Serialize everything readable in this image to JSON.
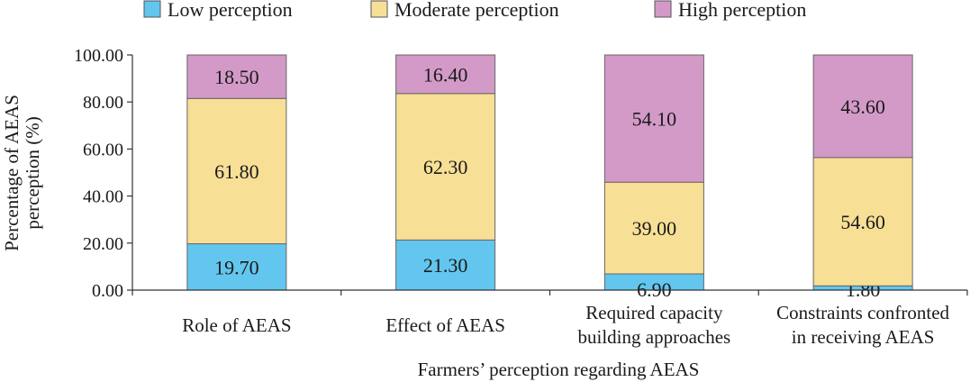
{
  "chart_data": {
    "type": "bar",
    "stacked": true,
    "categories": [
      [
        "Role of AEAS"
      ],
      [
        "Effect of AEAS"
      ],
      [
        "Required capacity",
        "building approaches"
      ],
      [
        "Constraints confronted",
        "in receiving AEAS"
      ]
    ],
    "series": [
      {
        "name": "Low perception",
        "color": "#63c6ee",
        "values": [
          19.7,
          21.3,
          6.9,
          1.8
        ]
      },
      {
        "name": "Moderate perception",
        "color": "#f8df96",
        "values": [
          61.8,
          62.3,
          39.0,
          54.6
        ]
      },
      {
        "name": "High perception",
        "color": "#d39ac8",
        "values": [
          18.5,
          16.4,
          54.1,
          43.6
        ]
      }
    ],
    "value_labels": [
      [
        "19.70",
        "21.30",
        "6.90",
        "1.80"
      ],
      [
        "61.80",
        "62.30",
        "39.00",
        "54.60"
      ],
      [
        "18.50",
        "16.40",
        "54.10",
        "43.60"
      ]
    ],
    "yticks": [
      "0.00",
      "20.00",
      "40.00",
      "60.00",
      "80.00",
      "100.00"
    ],
    "ylim": [
      0,
      100
    ],
    "ylabel": [
      "Percentage of AEAS",
      "perception (%)"
    ],
    "xlabel": "Farmers’ perception regarding AEAS",
    "legend_position": "top",
    "grid": false
  }
}
